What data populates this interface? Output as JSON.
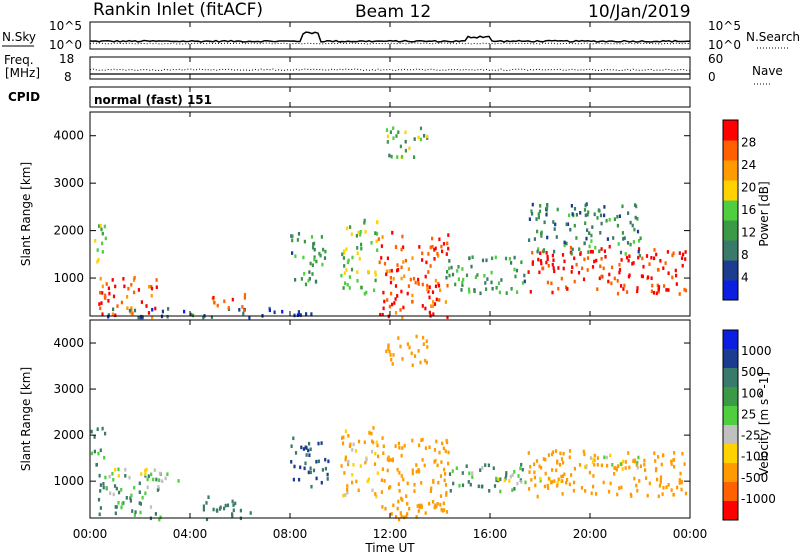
{
  "header": {
    "station": "Rankin Inlet (fitACF)",
    "beam": "Beam 12",
    "date": "10/Jan/2019"
  },
  "top_panels": {
    "nsky_label": "N.Sky",
    "nsearch_label": "N.Search",
    "nsky_ticks": [
      "10^5",
      "10^0"
    ],
    "nsearch_ticks": [
      "10^5",
      "10^0"
    ],
    "freq_label_1": "Freq.",
    "freq_label_2": "[MHz]",
    "freq_ticks": [
      "18",
      "8"
    ],
    "nave_label": "Nave",
    "nave_ticks": [
      "60",
      "0"
    ],
    "cpid_label": "CPID",
    "cpid_value": "normal (fast) 151"
  },
  "colors": {
    "red": "#ff0000",
    "orange_red": "#ff6000",
    "orange": "#ff9a00",
    "yellow": "#ffd200",
    "light_green": "#4fce3f",
    "green": "#3a9a45",
    "dark_teal": "#3a7a6a",
    "navy": "#1c3d8f",
    "blue": "#0a1fe0",
    "grey": "#c0c0c0"
  },
  "chart_data": [
    {
      "type": "heatmap",
      "title": "",
      "xlabel": "",
      "ylabel": "Slant Range [km]",
      "x_ticks": [
        "00:00",
        "04:00",
        "08:00",
        "12:00",
        "16:00",
        "20:00",
        "00:00"
      ],
      "y_ticks": [
        1000,
        2000,
        3000,
        4000
      ],
      "ylim": [
        200,
        4500
      ],
      "xlim_hours": [
        0,
        24
      ],
      "colorbar": {
        "label": "Power [dB]",
        "ticks": [
          4,
          8,
          12,
          16,
          20,
          24,
          28
        ],
        "range": [
          0,
          32
        ]
      },
      "echo_regions": [
        {
          "t": [
            0.0,
            0.6
          ],
          "range": [
            1300,
            2200
          ],
          "value": 18
        },
        {
          "t": [
            0.3,
            2.7
          ],
          "range": [
            200,
            1100
          ],
          "value": 28
        },
        {
          "t": [
            0.5,
            9.0
          ],
          "range": [
            200,
            400
          ],
          "value": 6
        },
        {
          "t": [
            4.8,
            6.2
          ],
          "range": [
            300,
            700
          ],
          "value": 26
        },
        {
          "t": [
            8.0,
            9.5
          ],
          "range": [
            900,
            2000
          ],
          "value": 12
        },
        {
          "t": [
            10.0,
            11.5
          ],
          "range": [
            700,
            2300
          ],
          "value": 16
        },
        {
          "t": [
            11.5,
            14.3
          ],
          "range": [
            200,
            2000
          ],
          "value": 28
        },
        {
          "t": [
            11.8,
            13.5
          ],
          "range": [
            3500,
            4200
          ],
          "value": 14
        },
        {
          "t": [
            14.2,
            17.5
          ],
          "range": [
            700,
            1500
          ],
          "value": 12
        },
        {
          "t": [
            17.5,
            23.8
          ],
          "range": [
            700,
            1700
          ],
          "value": 30
        },
        {
          "t": [
            17.5,
            22.0
          ],
          "range": [
            1500,
            2600
          ],
          "value": 10
        }
      ]
    },
    {
      "type": "heatmap",
      "title": "",
      "xlabel": "Time UT",
      "ylabel": "Slant Range [km]",
      "x_ticks": [
        "00:00",
        "04:00",
        "08:00",
        "12:00",
        "16:00",
        "20:00",
        "00:00"
      ],
      "y_ticks": [
        1000,
        2000,
        3000,
        4000
      ],
      "ylim": [
        200,
        4500
      ],
      "xlim_hours": [
        0,
        24
      ],
      "colorbar": {
        "label": "Velocity [m s^-1]",
        "ticks": [
          1000,
          500,
          100,
          25,
          -25,
          -100,
          -500,
          -1000
        ]
      },
      "echo_regions": [
        {
          "t": [
            0.0,
            0.6
          ],
          "range": [
            1300,
            2200
          ],
          "value": 100
        },
        {
          "t": [
            0.3,
            2.8
          ],
          "range": [
            200,
            1200
          ],
          "value": 100
        },
        {
          "t": [
            0.5,
            3.5
          ],
          "range": [
            1000,
            1300
          ],
          "value": 0
        },
        {
          "t": [
            4.5,
            6.5
          ],
          "range": [
            200,
            700
          ],
          "value": 300
        },
        {
          "t": [
            8.0,
            9.5
          ],
          "range": [
            900,
            2000
          ],
          "value": 500
        },
        {
          "t": [
            10.0,
            11.5
          ],
          "range": [
            700,
            2200
          ],
          "value": -100
        },
        {
          "t": [
            11.5,
            14.3
          ],
          "range": [
            200,
            2000
          ],
          "value": -300
        },
        {
          "t": [
            11.8,
            13.5
          ],
          "range": [
            3500,
            4200
          ],
          "value": -200
        },
        {
          "t": [
            14.2,
            17.5
          ],
          "range": [
            800,
            1400
          ],
          "value": 100
        },
        {
          "t": [
            15.0,
            19.0
          ],
          "range": [
            1000,
            1100
          ],
          "value": 0
        },
        {
          "t": [
            17.5,
            23.8
          ],
          "range": [
            700,
            1700
          ],
          "value": -200
        },
        {
          "t": [
            19.5,
            22.0
          ],
          "range": [
            1300,
            1600
          ],
          "value": 0
        }
      ]
    }
  ]
}
